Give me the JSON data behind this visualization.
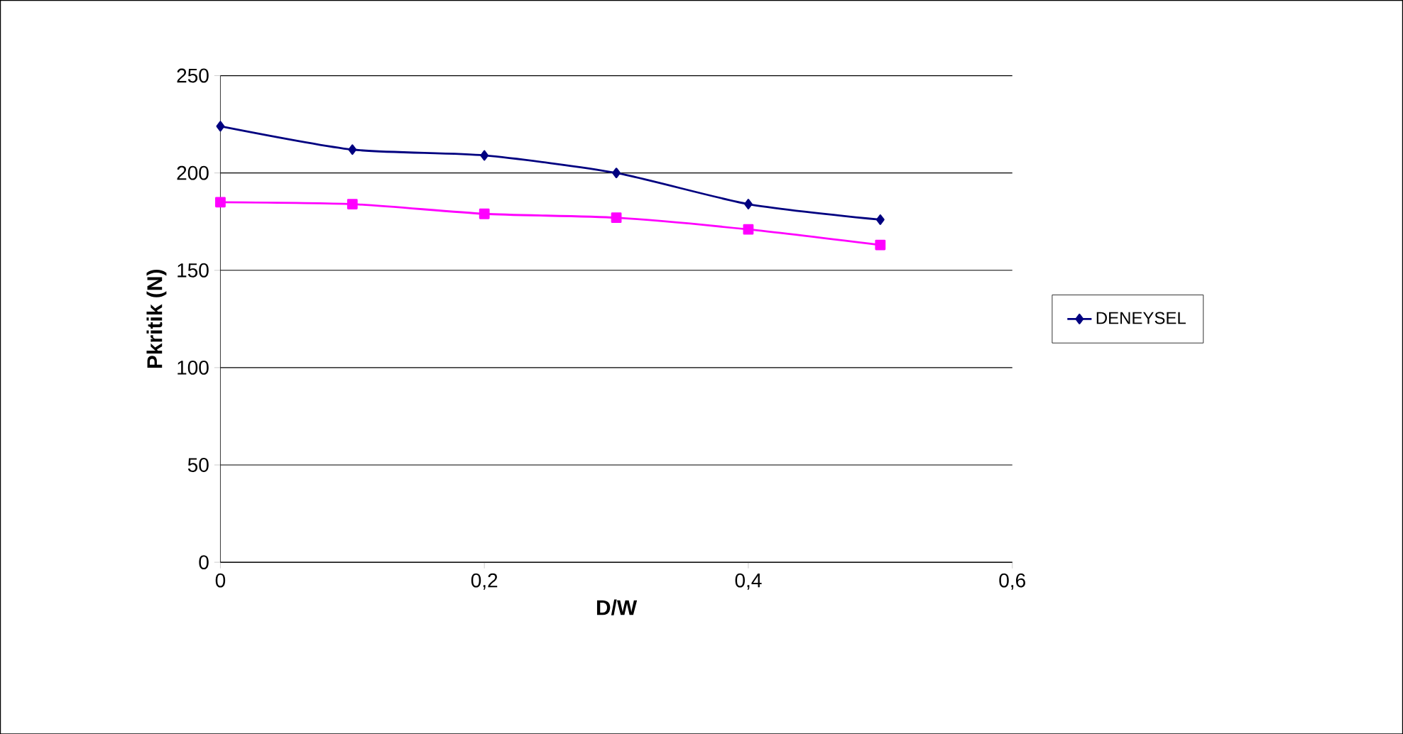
{
  "chart_data": {
    "type": "line",
    "xlabel": "D/W",
    "ylabel": "Pkritik (N)",
    "x": [
      0,
      0.1,
      0.2,
      0.3,
      0.4,
      0.5
    ],
    "series": [
      {
        "name": "DENEYSEL",
        "color": "#000080",
        "marker": "diamond",
        "values": [
          224,
          212,
          209,
          200,
          184,
          176
        ]
      },
      {
        "color": "#ff00ff",
        "marker": "square",
        "values": [
          185,
          184,
          179,
          177,
          171,
          163
        ]
      }
    ],
    "xlim": [
      0,
      0.6
    ],
    "xticks": [
      0,
      {
        "value": 0.2,
        "label": "0,2"
      },
      {
        "value": 0.4,
        "label": "0,4"
      },
      {
        "value": 0.6,
        "label": "0,6"
      }
    ],
    "ylim": [
      0,
      250
    ],
    "yticks": [
      0,
      50,
      100,
      150,
      200,
      250
    ],
    "grid": "y",
    "legend": "right",
    "line_style": "solid"
  }
}
